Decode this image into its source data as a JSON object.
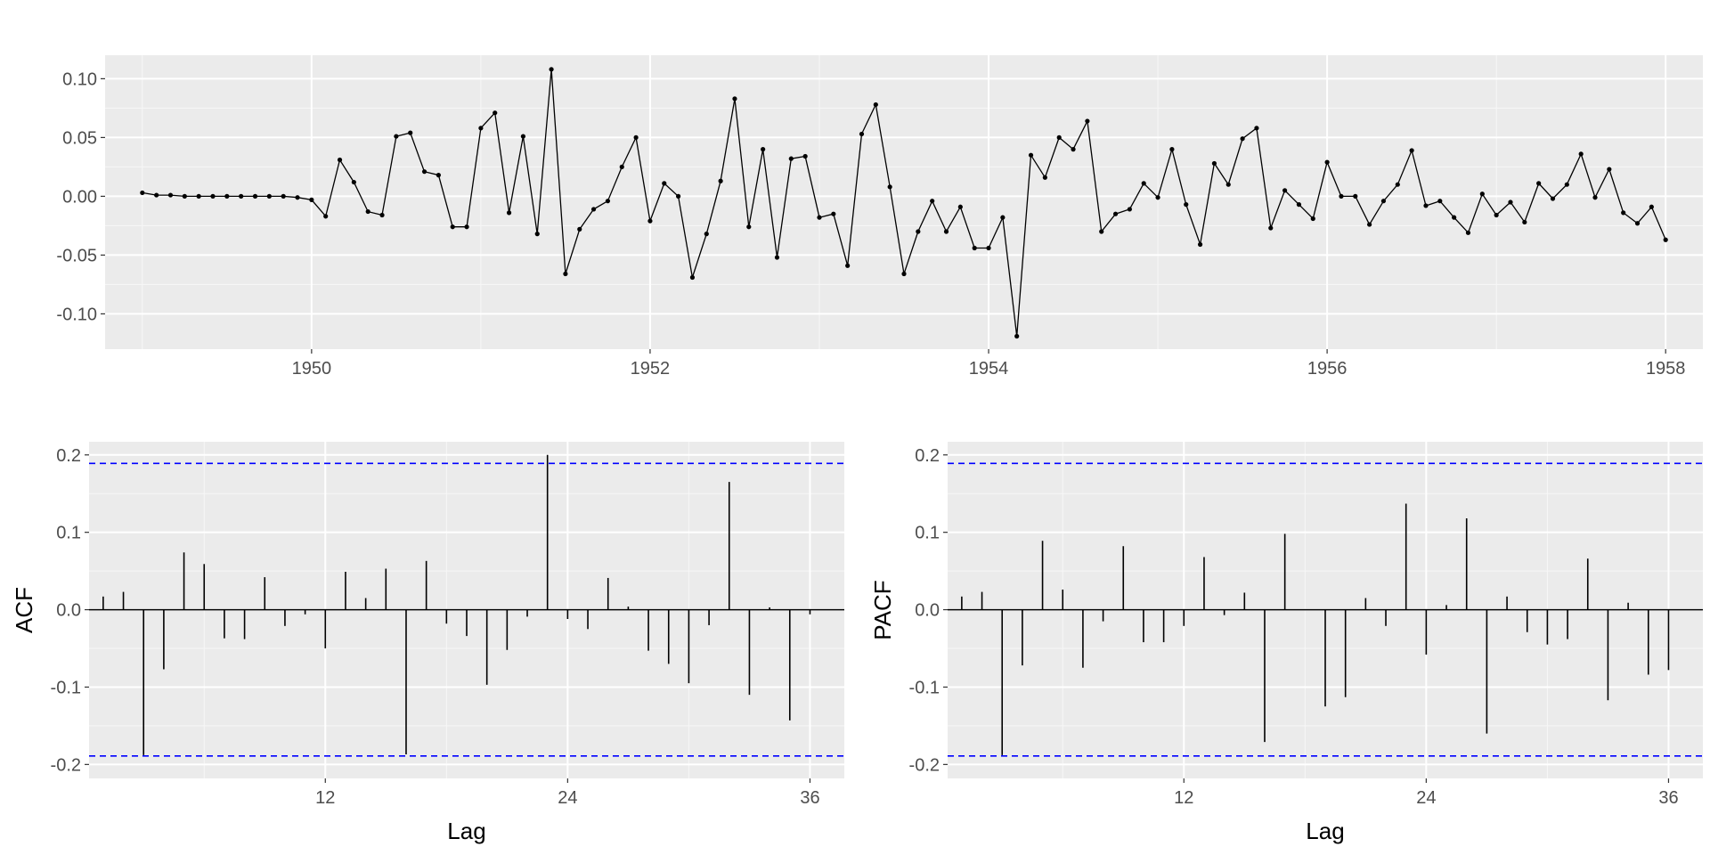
{
  "chart_data": [
    {
      "type": "line",
      "title": "",
      "xlabel": "",
      "ylabel": "",
      "xlim": [
        1948.78,
        1958.22
      ],
      "ylim": [
        -0.13,
        0.12
      ],
      "grid": true,
      "x_ticks": [
        {
          "value": 1950,
          "label": "1950"
        },
        {
          "value": 1952,
          "label": "1952"
        },
        {
          "value": 1954,
          "label": "1954"
        },
        {
          "value": 1956,
          "label": "1956"
        },
        {
          "value": 1958,
          "label": "1958"
        }
      ],
      "y_ticks": [
        {
          "value": 0.1,
          "label": "0.10"
        },
        {
          "value": 0.05,
          "label": "0.05"
        },
        {
          "value": 0.0,
          "label": "0.00"
        },
        {
          "value": -0.05,
          "label": "-0.05"
        },
        {
          "value": -0.1,
          "label": "-0.10"
        }
      ],
      "x_start": 1949.0,
      "x_step": 0.0833333,
      "series": [
        {
          "values": [
            0.003,
            0.001,
            0.001,
            0.0,
            0.0,
            0.0,
            0.0,
            0.0,
            0.0,
            0.0,
            0.0,
            -0.001,
            -0.003,
            -0.017,
            0.031,
            0.012,
            -0.013,
            -0.016,
            0.051,
            0.054,
            0.021,
            0.018,
            -0.026,
            -0.026,
            0.058,
            0.071,
            -0.014,
            0.051,
            -0.032,
            0.108,
            -0.066,
            -0.028,
            -0.011,
            -0.004,
            0.025,
            0.05,
            -0.021,
            0.011,
            0.0,
            -0.069,
            -0.032,
            0.013,
            0.083,
            -0.026,
            0.04,
            -0.052,
            0.032,
            0.034,
            -0.018,
            -0.015,
            -0.059,
            0.053,
            0.078,
            0.008,
            -0.066,
            -0.03,
            -0.004,
            -0.03,
            -0.009,
            -0.044,
            -0.044,
            -0.018,
            -0.119,
            0.035,
            0.016,
            0.05,
            0.04,
            0.064,
            -0.03,
            -0.015,
            -0.011,
            0.011,
            -0.001,
            0.04,
            -0.007,
            -0.041,
            0.028,
            0.01,
            0.049,
            0.058,
            -0.027,
            0.005,
            -0.007,
            -0.019,
            0.029,
            0.0,
            0.0,
            -0.024,
            -0.004,
            0.01,
            0.039,
            -0.008,
            -0.004,
            -0.018,
            -0.031,
            0.002,
            -0.016,
            -0.005,
            -0.022,
            0.011,
            -0.002,
            0.01,
            0.036,
            -0.001,
            0.023,
            -0.014,
            -0.023,
            -0.009,
            -0.037
          ]
        }
      ]
    },
    {
      "type": "bar",
      "title": "",
      "xlabel": "Lag",
      "ylabel": "ACF",
      "xlim": [
        0.3,
        37.7
      ],
      "ylim": [
        -0.218,
        0.217
      ],
      "grid": true,
      "x_ticks": [
        {
          "value": 12,
          "label": "12"
        },
        {
          "value": 24,
          "label": "24"
        },
        {
          "value": 36,
          "label": "36"
        }
      ],
      "y_ticks": [
        {
          "value": 0.2,
          "label": "0.2"
        },
        {
          "value": 0.1,
          "label": "0.1"
        },
        {
          "value": 0.0,
          "label": "0.0"
        },
        {
          "value": -0.1,
          "label": "-0.1"
        },
        {
          "value": -0.2,
          "label": "-0.2"
        }
      ],
      "confidence_limit": 0.189,
      "confidence_color": "#0000ff",
      "lags": [
        1,
        2,
        3,
        4,
        5,
        6,
        7,
        8,
        9,
        10,
        11,
        12,
        13,
        14,
        15,
        16,
        17,
        18,
        19,
        20,
        21,
        22,
        23,
        24,
        25,
        26,
        27,
        28,
        29,
        30,
        31,
        32,
        33,
        34,
        35,
        36
      ],
      "values": [
        0.017,
        0.023,
        -0.188,
        -0.077,
        0.074,
        0.059,
        -0.037,
        -0.038,
        0.042,
        -0.021,
        -0.006,
        -0.05,
        0.049,
        0.015,
        0.053,
        -0.187,
        0.063,
        -0.018,
        -0.034,
        -0.097,
        -0.052,
        -0.009,
        0.2,
        -0.012,
        -0.025,
        0.041,
        0.004,
        -0.053,
        -0.07,
        -0.095,
        -0.02,
        0.165,
        -0.11,
        0.003,
        -0.143,
        -0.006
      ]
    },
    {
      "type": "bar",
      "title": "",
      "xlabel": "Lag",
      "ylabel": "PACF",
      "xlim": [
        0.3,
        37.7
      ],
      "ylim": [
        -0.218,
        0.217
      ],
      "grid": true,
      "x_ticks": [
        {
          "value": 12,
          "label": "12"
        },
        {
          "value": 24,
          "label": "24"
        },
        {
          "value": 36,
          "label": "36"
        }
      ],
      "y_ticks": [
        {
          "value": 0.2,
          "label": "0.2"
        },
        {
          "value": 0.1,
          "label": "0.1"
        },
        {
          "value": 0.0,
          "label": "0.0"
        },
        {
          "value": -0.1,
          "label": "-0.1"
        },
        {
          "value": -0.2,
          "label": "-0.2"
        }
      ],
      "confidence_limit": 0.189,
      "confidence_color": "#0000ff",
      "lags": [
        1,
        2,
        3,
        4,
        5,
        6,
        7,
        8,
        9,
        10,
        11,
        12,
        13,
        14,
        15,
        16,
        17,
        18,
        19,
        20,
        21,
        22,
        23,
        24,
        25,
        26,
        27,
        28,
        29,
        30,
        31,
        32,
        33,
        34,
        35,
        36
      ],
      "values": [
        0.017,
        0.023,
        -0.188,
        -0.072,
        0.089,
        0.026,
        -0.075,
        -0.015,
        0.082,
        -0.042,
        -0.042,
        -0.021,
        0.068,
        -0.007,
        0.022,
        -0.171,
        0.098,
        0.0,
        -0.125,
        -0.113,
        0.015,
        -0.021,
        0.137,
        -0.058,
        0.006,
        0.118,
        -0.16,
        0.017,
        -0.029,
        -0.045,
        -0.038,
        0.066,
        -0.117,
        0.009,
        -0.084,
        -0.078
      ]
    }
  ]
}
